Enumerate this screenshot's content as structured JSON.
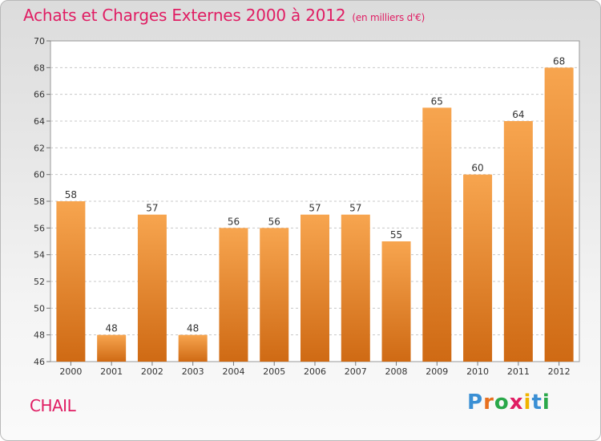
{
  "header": {
    "title": "Achats et Charges Externes 2000 à 2012",
    "unit": "(en milliers d'€)"
  },
  "footer": {
    "commune": "CHAIL",
    "logo_letters": [
      "P",
      "r",
      "o",
      "x",
      "i",
      "t",
      "i"
    ],
    "logo_colors": [
      "#3a8fd4",
      "#e8701e",
      "#2aa84a",
      "#e01d63",
      "#f0b400",
      "#3a8fd4",
      "#2aa84a"
    ]
  },
  "chart_data": {
    "type": "bar",
    "categories": [
      "2000",
      "2001",
      "2002",
      "2003",
      "2004",
      "2005",
      "2006",
      "2007",
      "2008",
      "2009",
      "2010",
      "2011",
      "2012"
    ],
    "values": [
      58,
      48,
      57,
      48,
      56,
      56,
      57,
      57,
      55,
      65,
      60,
      64,
      68
    ],
    "title": "Achats et Charges Externes 2000 à 2012",
    "xlabel": "",
    "ylabel": "",
    "ylim": [
      46,
      70
    ],
    "yticks": [
      46,
      48,
      50,
      52,
      54,
      56,
      58,
      60,
      62,
      64,
      66,
      68,
      70
    ],
    "grid": "y-dashed",
    "bar_color_top": "#f7a54f",
    "bar_color_bottom": "#cf6a14"
  }
}
